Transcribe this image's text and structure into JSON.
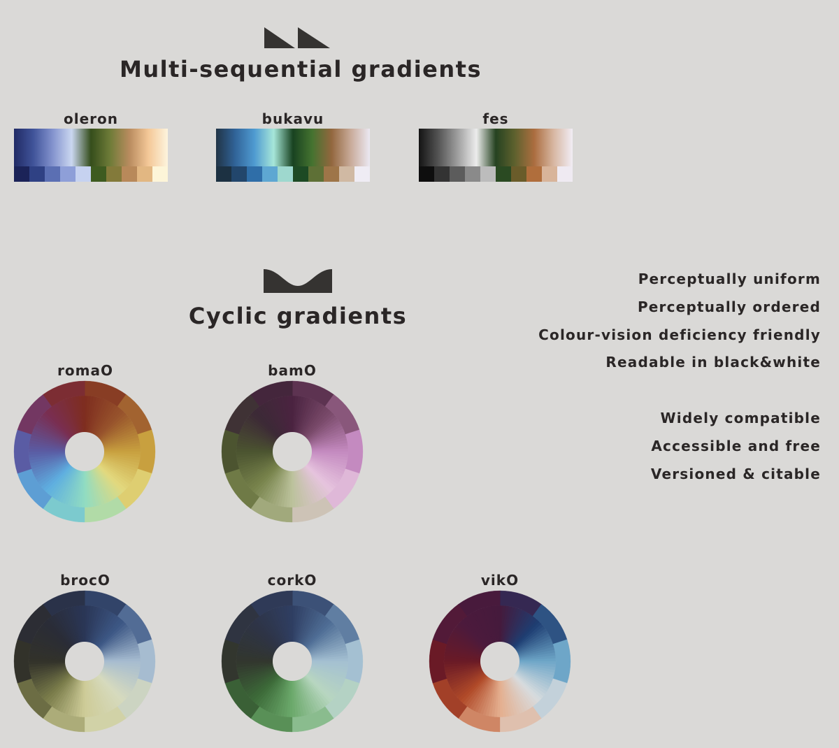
{
  "sequential": {
    "title": "Multi-sequential gradients",
    "palettes": [
      {
        "name": "oleron",
        "stops_top": [
          "#1a2460",
          "#3a4e96",
          "#7f8fcc",
          "#c9d6f0",
          "#2f4815",
          "#6a7832",
          "#b7885a",
          "#f4c795",
          "#fdf4dd"
        ],
        "swatches": [
          "#1b2358",
          "#2f4184",
          "#5b6fb3",
          "#8e9fd8",
          "#c6d2f0",
          "#3e5b20",
          "#837a3a",
          "#b8895a",
          "#e2b782",
          "#fdf5d8"
        ]
      },
      {
        "name": "bukavu",
        "stops_top": [
          "#1a2e40",
          "#2b5f96",
          "#4a98d0",
          "#a4e6d8",
          "#123d1a",
          "#3f6f2a",
          "#8f6238",
          "#c7a896",
          "#ebe8f2"
        ],
        "swatches": [
          "#1c3142",
          "#22466c",
          "#2f6ea8",
          "#5ea7d2",
          "#9ed8ce",
          "#1d4a24",
          "#5e7036",
          "#9e7548",
          "#d0b9a3",
          "#efecf4"
        ]
      },
      {
        "name": "fes",
        "stops_top": [
          "#0d0d0d",
          "#4e4e4e",
          "#9a9a9a",
          "#ececec",
          "#1f3d1a",
          "#5a5d28",
          "#a9693a",
          "#d6b49e",
          "#f1edf5"
        ],
        "swatches": [
          "#0e0e0e",
          "#333333",
          "#5c5c5c",
          "#8a8a8a",
          "#bcbcbc",
          "#2a4a22",
          "#6a5c2a",
          "#b06e3c",
          "#d8b49a",
          "#efeaf2"
        ]
      }
    ]
  },
  "cyclic": {
    "title": "Cyclic gradients",
    "wheels": [
      {
        "name": "romaO",
        "colors": [
          "#7e2d1f",
          "#98542c",
          "#c8a03f",
          "#e3d97e",
          "#90dcc2",
          "#5eaee0",
          "#5a5ca4",
          "#792e52",
          "#7e2d1f"
        ]
      },
      {
        "name": "bamO",
        "colors": [
          "#4a2340",
          "#7a4a6a",
          "#c48ac0",
          "#e6c4de",
          "#bcc29c",
          "#78844c",
          "#4c5430",
          "#3c2a36",
          "#4a2340"
        ]
      },
      {
        "name": "brocO",
        "colors": [
          "#2a3656",
          "#3d5886",
          "#a6bcd0",
          "#d6dabe",
          "#cecc98",
          "#7a7c4a",
          "#32322a",
          "#2a2c36",
          "#2a3656"
        ]
      },
      {
        "name": "corkO",
        "colors": [
          "#2f3e62",
          "#4f6e96",
          "#a4c0d2",
          "#b8d6c0",
          "#6caa6c",
          "#3c6a38",
          "#32362e",
          "#2e3446",
          "#2f3e62"
        ]
      },
      {
        "name": "vikO",
        "colors": [
          "#451a3c",
          "#1e3e72",
          "#6ea6c8",
          "#d8dcde",
          "#e4ae8e",
          "#b04a28",
          "#6a1a26",
          "#4c1a3c",
          "#451a3c"
        ]
      }
    ]
  },
  "features": {
    "group1": [
      "Perceptually uniform",
      "Perceptually ordered",
      "Colour-vision deficiency friendly",
      "Readable in black&white"
    ],
    "group2": [
      "Widely compatible",
      "Accessible and free",
      "Versioned & citable"
    ]
  }
}
